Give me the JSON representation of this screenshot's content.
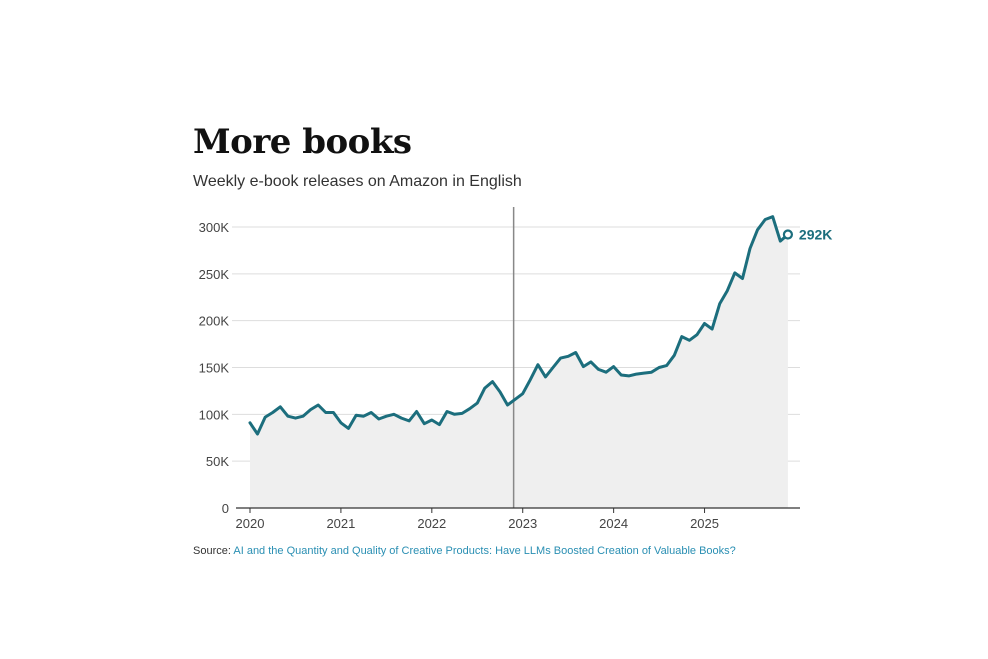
{
  "header": {
    "title": "More books",
    "subtitle": "Weekly e-book releases on Amazon in English"
  },
  "source": {
    "prefix": "Source:",
    "link_text": "AI and the Quantity and Quality of Creative Products: Have LLMs Boosted Creation of Valuable Books?"
  },
  "colors": {
    "line": "#1c6e7d",
    "area": "#efefef",
    "grid": "#dddddd",
    "axis": "#333333",
    "marker_line": "#888888"
  },
  "chart_data": {
    "type": "area",
    "title": "More books",
    "subtitle": "Weekly e-book releases on Amazon in English",
    "xlim": [
      2020,
      2026.05
    ],
    "ylim": [
      0,
      310000
    ],
    "y_ticks": [
      0,
      50000,
      100000,
      150000,
      200000,
      250000,
      300000
    ],
    "y_tick_labels": [
      "0",
      "50K",
      "100K",
      "150K",
      "200K",
      "250K",
      "300K"
    ],
    "x_ticks": [
      2020,
      2021,
      2022,
      2023,
      2024,
      2025
    ],
    "x_tick_labels": [
      "2020",
      "2021",
      "2022",
      "2023",
      "2024",
      "2025"
    ],
    "vertical_marker_x": 2022.9,
    "grid": true,
    "end_label": "292K",
    "series": [
      {
        "x": [
          2020.0,
          2020.083,
          2020.167,
          2020.25,
          2020.333,
          2020.417,
          2020.5,
          2020.583,
          2020.667,
          2020.75,
          2020.833,
          2020.917,
          2021.0,
          2021.083,
          2021.167,
          2021.25,
          2021.333,
          2021.417,
          2021.5,
          2021.583,
          2021.667,
          2021.75,
          2021.833,
          2021.917,
          2022.0,
          2022.083,
          2022.167,
          2022.25,
          2022.333,
          2022.417,
          2022.5,
          2022.583,
          2022.667,
          2022.75,
          2022.833,
          2022.917,
          2023.0,
          2023.083,
          2023.167,
          2023.25,
          2023.333,
          2023.417,
          2023.5,
          2023.583,
          2023.667,
          2023.75,
          2023.833,
          2023.917,
          2024.0,
          2024.083,
          2024.167,
          2024.25,
          2024.333,
          2024.417,
          2024.5,
          2024.583,
          2024.667,
          2024.75,
          2024.833,
          2024.917,
          2025.0,
          2025.083,
          2025.167,
          2025.25,
          2025.333,
          2025.417,
          2025.5,
          2025.583,
          2025.667,
          2025.75,
          2025.833,
          2025.917
        ],
        "values": [
          91000,
          79000,
          97000,
          102000,
          108000,
          98000,
          96000,
          98000,
          105000,
          110000,
          102000,
          102000,
          91000,
          85000,
          99000,
          98000,
          102000,
          95000,
          98000,
          100000,
          96000,
          93000,
          103000,
          90000,
          94000,
          89000,
          103000,
          100000,
          101000,
          106000,
          112000,
          128000,
          135000,
          124000,
          110000,
          116000,
          122000,
          137000,
          153000,
          140000,
          150000,
          160000,
          162000,
          166000,
          151000,
          156000,
          148000,
          145000,
          151000,
          142000,
          141000,
          143000,
          144000,
          145000,
          150000,
          152000,
          163000,
          183000,
          179000,
          185000,
          197000,
          191000,
          218000,
          232000,
          251000,
          245000,
          277000,
          297000,
          308000,
          311000,
          285000,
          292000
        ]
      }
    ]
  }
}
